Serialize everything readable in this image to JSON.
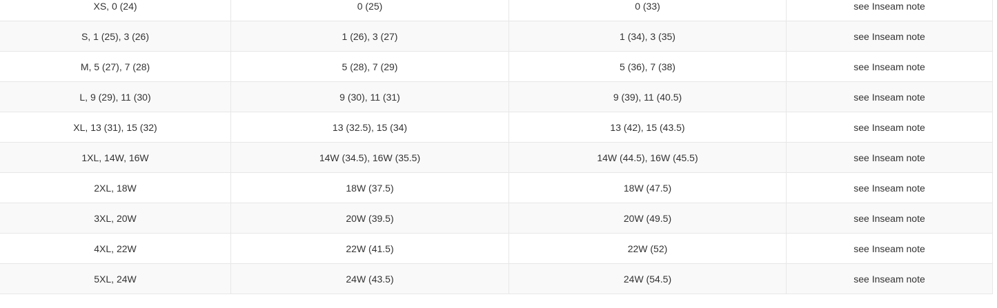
{
  "colors": {
    "row_plain": "#ffffff",
    "row_stripe": "#f9f9f9",
    "border": "#e7e7e7",
    "text": "#333333",
    "page_background": "#ffffff"
  },
  "table": {
    "rows": [
      [
        "XS, 0 (24)",
        "0 (25)",
        "0 (33)",
        "see Inseam note"
      ],
      [
        "S, 1 (25), 3 (26)",
        "1 (26), 3 (27)",
        "1 (34), 3 (35)",
        "see Inseam note"
      ],
      [
        "M, 5 (27), 7 (28)",
        "5 (28), 7 (29)",
        "5 (36), 7 (38)",
        "see Inseam note"
      ],
      [
        "L, 9 (29), 11 (30)",
        "9 (30), 11 (31)",
        "9 (39), 11 (40.5)",
        "see Inseam note"
      ],
      [
        "XL, 13 (31), 15 (32)",
        "13 (32.5), 15 (34)",
        "13 (42), 15 (43.5)",
        "see Inseam note"
      ],
      [
        "1XL, 14W, 16W",
        "14W (34.5), 16W (35.5)",
        "14W (44.5), 16W (45.5)",
        "see Inseam note"
      ],
      [
        "2XL, 18W",
        "18W (37.5)",
        "18W (47.5)",
        "see Inseam note"
      ],
      [
        "3XL, 20W",
        "20W (39.5)",
        "20W (49.5)",
        "see Inseam note"
      ],
      [
        "4XL, 22W",
        "22W (41.5)",
        "22W (52)",
        "see Inseam note"
      ],
      [
        "5XL, 24W",
        "24W (43.5)",
        "24W (54.5)",
        "see Inseam note"
      ]
    ]
  }
}
